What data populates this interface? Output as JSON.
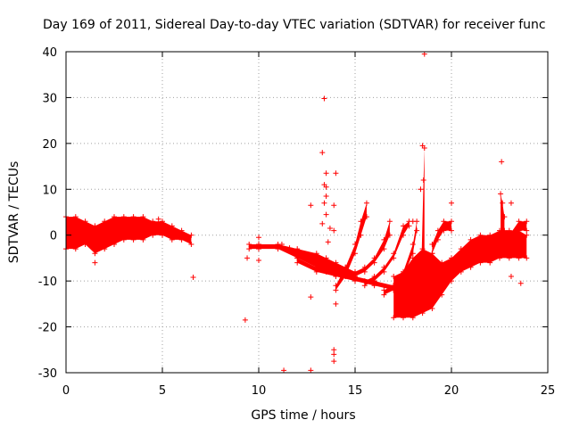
{
  "chart_data": {
    "type": "scatter",
    "title": "Day 169 of 2011, Sidereal Day-to-day VTEC variation (SDTVAR) for receiver func",
    "xlabel": "GPS time / hours",
    "ylabel": "SDTVAR / TECUs",
    "xlim": [
      0,
      25
    ],
    "ylim": [
      -30,
      40
    ],
    "xticks": [
      0,
      5,
      10,
      15,
      20,
      25
    ],
    "yticks": [
      -30,
      -20,
      -10,
      0,
      10,
      20,
      30,
      40
    ],
    "grid": true,
    "marker": "+",
    "color": "#ff0000",
    "dense_traces": [
      {
        "name": "early-band-1",
        "x": [
          0.0,
          0.5,
          1.0,
          1.5,
          2.0,
          2.5,
          3.0,
          3.5,
          4.0,
          4.5,
          5.0,
          5.5,
          6.0,
          6.5
        ],
        "lo": [
          -3,
          -3,
          -2,
          -4,
          -3,
          -2,
          -1,
          -1,
          -1,
          0,
          0,
          -1,
          -1,
          -2
        ],
        "hi": [
          4,
          4,
          3,
          2,
          3,
          4,
          4,
          4,
          4,
          3,
          3,
          2,
          1,
          0
        ]
      },
      {
        "name": "midday-trace-1",
        "x": [
          9.5,
          10.0,
          11.0,
          12.0,
          13.0,
          13.5,
          14.0,
          14.5,
          15.0
        ],
        "lo": [
          -3,
          -3,
          -3,
          -5,
          -7,
          -8,
          -8,
          -9,
          -9
        ],
        "hi": [
          -2,
          -2,
          -2,
          -3,
          -4,
          -5,
          -6,
          -7,
          -8
        ]
      },
      {
        "name": "midday-trace-2",
        "x": [
          12.0,
          13.0,
          14.0,
          15.0,
          16.0,
          17.0,
          17.5
        ],
        "lo": [
          -6,
          -8,
          -9,
          -10,
          -11,
          -12,
          -12
        ],
        "hi": [
          -5,
          -7,
          -8,
          -9,
          -10,
          -11,
          -11
        ]
      },
      {
        "name": "rising-arc-1",
        "x": [
          14.0,
          14.5,
          15.0,
          15.3,
          15.6
        ],
        "lo": [
          -12,
          -9,
          -4,
          0,
          4
        ],
        "hi": [
          -11,
          -7,
          -2,
          3,
          7
        ]
      },
      {
        "name": "rising-arc-2",
        "x": [
          15.0,
          15.5,
          16.0,
          16.5,
          16.8
        ],
        "lo": [
          -9,
          -8,
          -6,
          -3,
          0
        ],
        "hi": [
          -8,
          -7,
          -5,
          -1,
          3
        ]
      },
      {
        "name": "rising-arc-3",
        "x": [
          15.5,
          16.0,
          16.5,
          17.0,
          17.5,
          17.8
        ],
        "lo": [
          -11,
          -10,
          -8,
          -5,
          0,
          2
        ],
        "hi": [
          -10,
          -9,
          -7,
          -4,
          2,
          3
        ]
      },
      {
        "name": "rising-arc-4",
        "x": [
          16.5,
          17.0,
          17.5,
          18.0,
          18.2
        ],
        "lo": [
          -13,
          -12,
          -9,
          -4,
          1
        ],
        "hi": [
          -12,
          -11,
          -8,
          -2,
          3
        ]
      },
      {
        "name": "evening-dense",
        "x": [
          17.0,
          17.5,
          18.0,
          18.5,
          19.0,
          19.5,
          20.0,
          20.5,
          21.0,
          21.5,
          22.0,
          22.5,
          23.0,
          23.5,
          23.9
        ],
        "lo": [
          -18,
          -18,
          -18,
          -17,
          -16,
          -13,
          -10,
          -8,
          -7,
          -6,
          -6,
          -5,
          -5,
          -5,
          -5
        ],
        "hi": [
          -9,
          -8,
          -5,
          -3,
          -4,
          -6,
          -5,
          -3,
          -1,
          0,
          0,
          1,
          1,
          1,
          0
        ]
      },
      {
        "name": "late-arc-1",
        "x": [
          19.0,
          19.3,
          19.6,
          20.0
        ],
        "lo": [
          -4,
          -1,
          1,
          1
        ],
        "hi": [
          -2,
          1,
          3,
          3
        ]
      },
      {
        "name": "late-arc-2",
        "x": [
          22.5,
          23.0,
          23.5,
          23.9
        ],
        "lo": [
          -4,
          -2,
          1,
          1
        ],
        "hi": [
          -2,
          0,
          3,
          3
        ]
      },
      {
        "name": "spike-18.5",
        "x": [
          18.45,
          18.55,
          18.6
        ],
        "lo": [
          -14,
          -10,
          -6
        ],
        "hi": [
          -5,
          12,
          19
        ]
      },
      {
        "name": "spike-22.6",
        "x": [
          22.55,
          22.65,
          22.75
        ],
        "lo": [
          -3,
          -1,
          1
        ],
        "hi": [
          9,
          7,
          4
        ]
      }
    ],
    "scatter_points": [
      {
        "x": 18.6,
        "y": 39.5
      },
      {
        "x": 13.4,
        "y": 29.8
      },
      {
        "x": 18.5,
        "y": 19.5
      },
      {
        "x": 13.3,
        "y": 18.0
      },
      {
        "x": 22.6,
        "y": 16.0
      },
      {
        "x": 13.5,
        "y": 13.5
      },
      {
        "x": 14.0,
        "y": 13.5
      },
      {
        "x": 13.4,
        "y": 11.0
      },
      {
        "x": 13.5,
        "y": 10.5
      },
      {
        "x": 18.4,
        "y": 10.0
      },
      {
        "x": 13.5,
        "y": 8.5
      },
      {
        "x": 13.4,
        "y": 7.0
      },
      {
        "x": 20.0,
        "y": 7.0
      },
      {
        "x": 12.7,
        "y": 6.5
      },
      {
        "x": 13.9,
        "y": 6.5
      },
      {
        "x": 23.1,
        "y": 7.0
      },
      {
        "x": 13.5,
        "y": 4.5
      },
      {
        "x": 13.3,
        "y": 2.5
      },
      {
        "x": 13.7,
        "y": 1.5
      },
      {
        "x": 13.9,
        "y": 1.0
      },
      {
        "x": 18.0,
        "y": 3.0
      },
      {
        "x": 4.8,
        "y": 3.5
      },
      {
        "x": 10.0,
        "y": -0.5
      },
      {
        "x": 13.6,
        "y": -1.5
      },
      {
        "x": 11.2,
        "y": -2.0
      },
      {
        "x": 11.6,
        "y": -2.8
      },
      {
        "x": 9.4,
        "y": -5.0
      },
      {
        "x": 10.0,
        "y": -5.5
      },
      {
        "x": 1.5,
        "y": -6.0
      },
      {
        "x": 23.1,
        "y": -9.0
      },
      {
        "x": 6.6,
        "y": -9.2
      },
      {
        "x": 23.6,
        "y": -10.5
      },
      {
        "x": 12.7,
        "y": -13.5
      },
      {
        "x": 14.0,
        "y": -15.0
      },
      {
        "x": 9.3,
        "y": -18.5
      },
      {
        "x": 13.9,
        "y": -25.0
      },
      {
        "x": 13.9,
        "y": -26.0
      },
      {
        "x": 13.9,
        "y": -27.5
      },
      {
        "x": 11.3,
        "y": -29.5
      },
      {
        "x": 12.7,
        "y": -29.5
      }
    ]
  }
}
